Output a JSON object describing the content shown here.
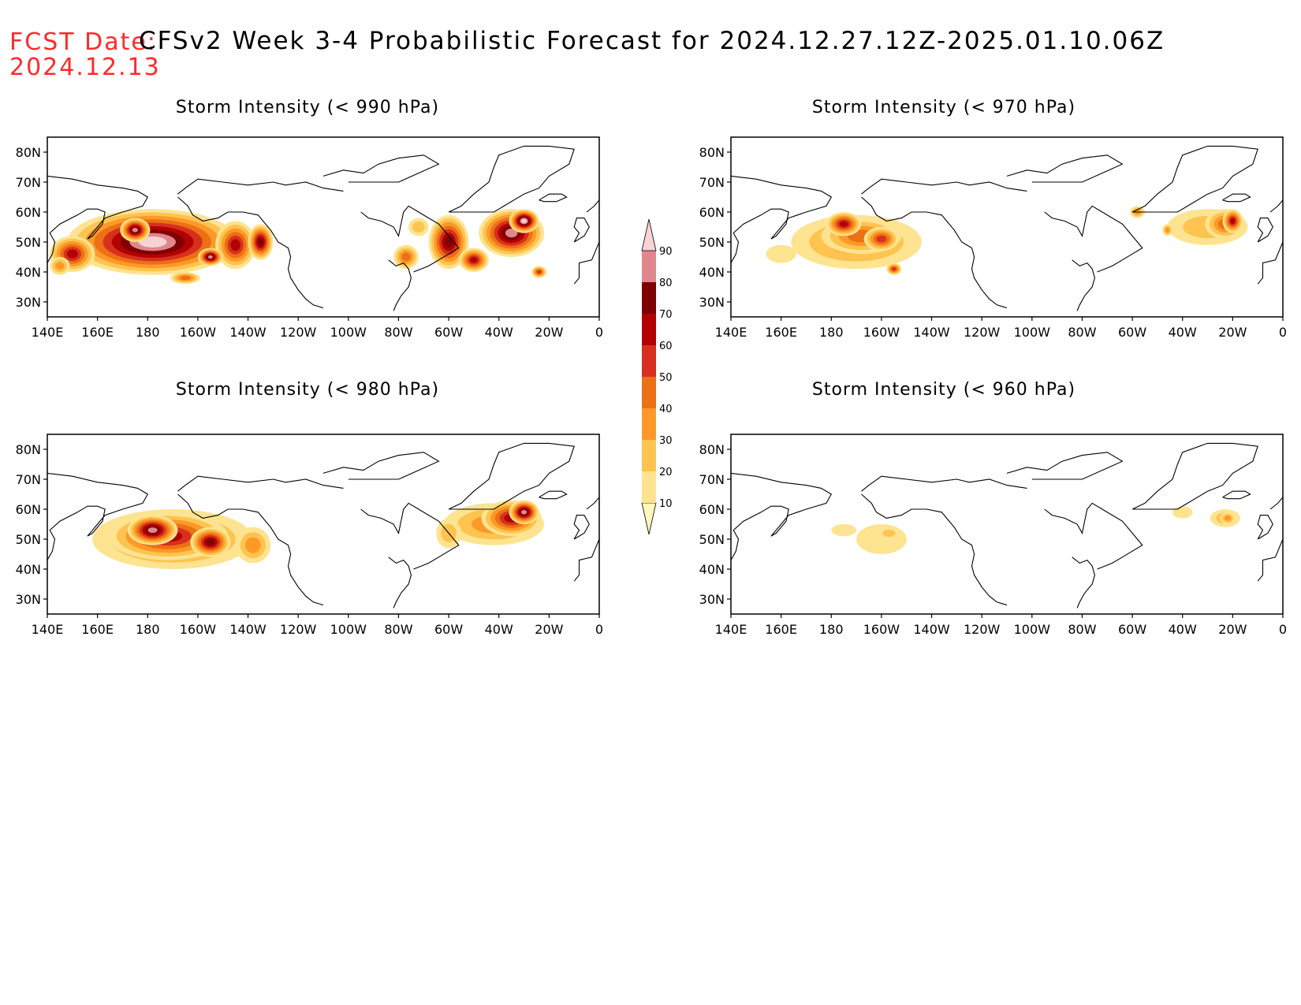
{
  "header": {
    "fcst_label": "FCST Date:",
    "fcst_date": "2024.12.13",
    "title": "CFSv2 Week 3-4 Probabilistic Forecast for 2024.12.27.12Z-2025.01.10.06Z"
  },
  "axes": {
    "lat_labels": [
      "80N",
      "70N",
      "60N",
      "50N",
      "40N",
      "30N"
    ],
    "lat_values": [
      80,
      70,
      60,
      50,
      40,
      30
    ],
    "lon_labels": [
      "140E",
      "160E",
      "180",
      "160W",
      "140W",
      "120W",
      "100W",
      "80W",
      "60W",
      "40W",
      "20W",
      "0"
    ],
    "lon_values": [
      140,
      160,
      180,
      200,
      220,
      240,
      260,
      280,
      300,
      320,
      340,
      360
    ],
    "lat_range": [
      25,
      85
    ],
    "lon_range": [
      140,
      360
    ]
  },
  "colorbar": {
    "levels": [
      "10",
      "20",
      "30",
      "40",
      "50",
      "60",
      "70",
      "80",
      "90"
    ],
    "colors": [
      "#fff7bc",
      "#fee391",
      "#fec44f",
      "#fe9929",
      "#ec7014",
      "#d7301f",
      "#b30000",
      "#7f0000",
      "#e0868c",
      "#f9d2d5"
    ]
  },
  "panels": [
    {
      "id": "p990",
      "title": "Storm Intensity (< 990 hPa)",
      "blobs": [
        {
          "lon": 182,
          "lat": 50,
          "rlon": 34,
          "rlat": 11,
          "level": 9
        },
        {
          "lon": 150,
          "lat": 46,
          "rlon": 9,
          "rlat": 6,
          "level": 6
        },
        {
          "lon": 215,
          "lat": 49,
          "rlon": 8,
          "rlat": 8,
          "level": 6
        },
        {
          "lon": 225,
          "lat": 50,
          "rlon": 5,
          "rlat": 6,
          "level": 7
        },
        {
          "lon": 205,
          "lat": 45,
          "rlon": 5,
          "rlat": 3,
          "level": 8
        },
        {
          "lon": 175,
          "lat": 54,
          "rlon": 6,
          "rlat": 4,
          "level": 8
        },
        {
          "lon": 145,
          "lat": 42,
          "rlon": 4,
          "rlat": 3,
          "level": 3
        },
        {
          "lon": 195,
          "lat": 38,
          "rlon": 6,
          "rlat": 2,
          "level": 4
        },
        {
          "lon": 300,
          "lat": 50,
          "rlon": 8,
          "rlat": 9,
          "level": 7
        },
        {
          "lon": 325,
          "lat": 53,
          "rlon": 13,
          "rlat": 8,
          "level": 8
        },
        {
          "lon": 330,
          "lat": 57,
          "rlon": 6,
          "rlat": 4,
          "level": 9
        },
        {
          "lon": 310,
          "lat": 44,
          "rlon": 6,
          "rlat": 4,
          "level": 6
        },
        {
          "lon": 283,
          "lat": 45,
          "rlon": 5,
          "rlat": 4,
          "level": 4
        },
        {
          "lon": 288,
          "lat": 55,
          "rlon": 4,
          "rlat": 3,
          "level": 2
        },
        {
          "lon": 336,
          "lat": 40,
          "rlon": 3,
          "rlat": 2,
          "level": 5
        }
      ]
    },
    {
      "id": "p970",
      "title": "Storm Intensity (< 970 hPa)",
      "blobs": [
        {
          "lon": 190,
          "lat": 50,
          "rlon": 26,
          "rlat": 9,
          "level": 3
        },
        {
          "lon": 192,
          "lat": 52,
          "rlon": 16,
          "rlat": 6,
          "level": 4
        },
        {
          "lon": 185,
          "lat": 56,
          "rlon": 7,
          "rlat": 4,
          "level": 6
        },
        {
          "lon": 200,
          "lat": 51,
          "rlon": 7,
          "rlat": 4,
          "level": 5
        },
        {
          "lon": 205,
          "lat": 41,
          "rlon": 3,
          "rlat": 2,
          "level": 5
        },
        {
          "lon": 160,
          "lat": 46,
          "rlon": 6,
          "rlat": 3,
          "level": 1
        },
        {
          "lon": 330,
          "lat": 55,
          "rlon": 16,
          "rlat": 6,
          "level": 2
        },
        {
          "lon": 337,
          "lat": 56,
          "rlon": 8,
          "rlat": 5,
          "level": 4
        },
        {
          "lon": 340,
          "lat": 57,
          "rlon": 4,
          "rlat": 4,
          "level": 6
        },
        {
          "lon": 302,
          "lat": 60,
          "rlon": 3,
          "rlat": 2,
          "level": 3
        },
        {
          "lon": 314,
          "lat": 54,
          "rlon": 2,
          "rlat": 2,
          "level": 3
        }
      ]
    },
    {
      "id": "p980",
      "title": "Storm Intensity (< 980 hPa)",
      "blobs": [
        {
          "lon": 190,
          "lat": 50,
          "rlon": 32,
          "rlat": 10,
          "level": 4
        },
        {
          "lon": 188,
          "lat": 51,
          "rlon": 24,
          "rlat": 8,
          "level": 6
        },
        {
          "lon": 182,
          "lat": 53,
          "rlon": 10,
          "rlat": 5,
          "level": 8
        },
        {
          "lon": 205,
          "lat": 49,
          "rlon": 8,
          "rlat": 5,
          "level": 7
        },
        {
          "lon": 222,
          "lat": 48,
          "rlon": 7,
          "rlat": 6,
          "level": 3
        },
        {
          "lon": 318,
          "lat": 55,
          "rlon": 20,
          "rlat": 7,
          "level": 3
        },
        {
          "lon": 325,
          "lat": 57,
          "rlon": 12,
          "rlat": 6,
          "level": 6
        },
        {
          "lon": 330,
          "lat": 59,
          "rlon": 6,
          "rlat": 4,
          "level": 8
        },
        {
          "lon": 300,
          "lat": 52,
          "rlon": 5,
          "rlat": 5,
          "level": 2
        }
      ]
    },
    {
      "id": "p960",
      "title": "Storm Intensity (< 960 hPa)",
      "blobs": [
        {
          "lon": 200,
          "lat": 50,
          "rlon": 10,
          "rlat": 5,
          "level": 1
        },
        {
          "lon": 203,
          "lat": 52,
          "rlon": 4,
          "rlat": 2,
          "level": 2
        },
        {
          "lon": 185,
          "lat": 53,
          "rlon": 5,
          "rlat": 2,
          "level": 1
        },
        {
          "lon": 320,
          "lat": 59,
          "rlon": 4,
          "rlat": 2,
          "level": 1
        },
        {
          "lon": 337,
          "lat": 57,
          "rlon": 6,
          "rlat": 3,
          "level": 2
        },
        {
          "lon": 338,
          "lat": 57,
          "rlon": 3,
          "rlat": 2,
          "level": 3
        }
      ]
    }
  ]
}
